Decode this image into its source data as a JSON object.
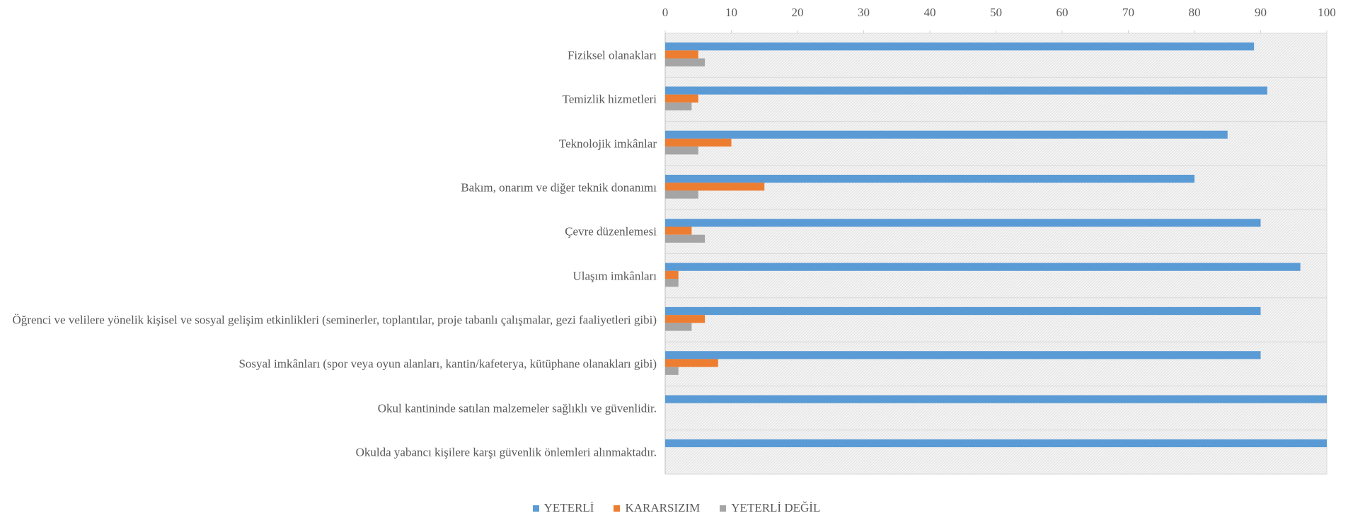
{
  "chart_data": {
    "type": "hbar",
    "categories": [
      "Fiziksel olanakları",
      "Temizlik hizmetleri",
      "Teknolojik imkânlar",
      "Bakım, onarım ve diğer teknik donanımı",
      "Çevre düzenlemesi",
      "Ulaşım imkânları",
      "Öğrenci ve velilere yönelik kişisel ve sosyal gelişim etkinlikleri (seminerler, toplantılar, proje tabanlı çalışmalar, gezi faaliyetleri gibi)",
      "Sosyal imkânları (spor veya oyun alanları, kantin/kafeterya, kütüphane olanakları gibi)",
      "Okul kantininde satılan malzemeler sağlıklı ve güvenlidir.",
      "Okulda yabancı kişilere karşı güvenlik önlemleri alınmaktadır."
    ],
    "series": [
      {
        "name": "YETERLİ",
        "color": "#5b9bd5",
        "values": [
          89,
          91,
          85,
          80,
          90,
          96,
          90,
          90,
          100,
          100
        ]
      },
      {
        "name": "KARARSIZIM",
        "color": "#ed7d31",
        "values": [
          5,
          5,
          10,
          15,
          4,
          2,
          6,
          8,
          0,
          0
        ]
      },
      {
        "name": "YETERLİ DEĞİL",
        "color": "#a5a5a5",
        "values": [
          6,
          4,
          5,
          5,
          6,
          2,
          4,
          2,
          0,
          0
        ]
      }
    ],
    "xlim": [
      0,
      100
    ],
    "xticks": [
      0,
      10,
      20,
      30,
      40,
      50,
      60,
      70,
      80,
      90,
      100
    ],
    "legend": "bottom"
  }
}
